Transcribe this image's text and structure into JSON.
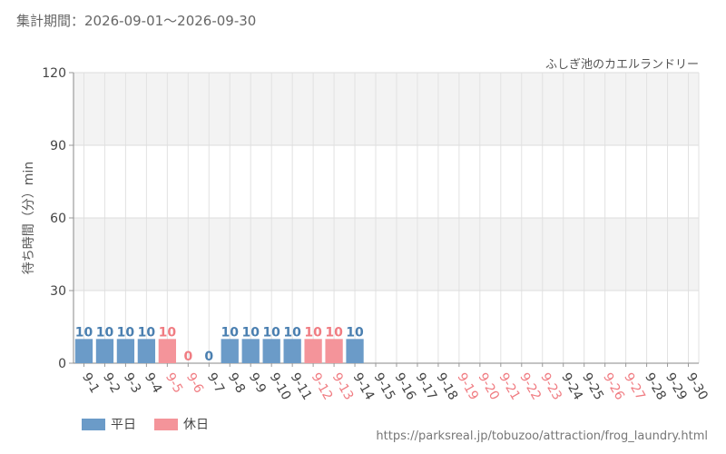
{
  "header": {
    "period_label": "集計期間：2026-09-01～2026-09-30"
  },
  "legend": {
    "weekday_label": "平日",
    "holiday_label": "休日"
  },
  "footer": {
    "source_url": "https://parksreal.jp/tobuzoo/attraction/frog_laundry.html"
  },
  "colors": {
    "weekday": "#6b9bc8",
    "holiday": "#f4949a",
    "weekday_text": "#4a7fb0",
    "holiday_text": "#f07c82",
    "band": "#f3f3f3"
  },
  "chart_data": {
    "type": "bar",
    "title": "ふしぎ池のカエルランドリー",
    "ylabel": "待ち時間（分）min",
    "xlabel": "",
    "ylim": [
      0,
      120
    ],
    "yticks": [
      0,
      30,
      60,
      90,
      120
    ],
    "grid": true,
    "categories": [
      "9-1",
      "9-2",
      "9-3",
      "9-4",
      "9-5",
      "9-6",
      "9-7",
      "9-8",
      "9-9",
      "9-10",
      "9-11",
      "9-12",
      "9-13",
      "9-14",
      "9-15",
      "9-16",
      "9-17",
      "9-18",
      "9-19",
      "9-20",
      "9-21",
      "9-22",
      "9-23",
      "9-24",
      "9-25",
      "9-26",
      "9-27",
      "9-28",
      "9-29",
      "9-30"
    ],
    "day_type": [
      "weekday",
      "weekday",
      "weekday",
      "weekday",
      "holiday",
      "holiday",
      "weekday",
      "weekday",
      "weekday",
      "weekday",
      "weekday",
      "holiday",
      "holiday",
      "weekday",
      "weekday",
      "weekday",
      "weekday",
      "weekday",
      "holiday",
      "holiday",
      "holiday",
      "holiday",
      "holiday",
      "weekday",
      "weekday",
      "holiday",
      "holiday",
      "weekday",
      "weekday",
      "weekday"
    ],
    "values": [
      10,
      10,
      10,
      10,
      10,
      0,
      0,
      10,
      10,
      10,
      10,
      10,
      10,
      10,
      null,
      null,
      null,
      null,
      null,
      null,
      null,
      null,
      null,
      null,
      null,
      null,
      null,
      null,
      null,
      null
    ]
  }
}
